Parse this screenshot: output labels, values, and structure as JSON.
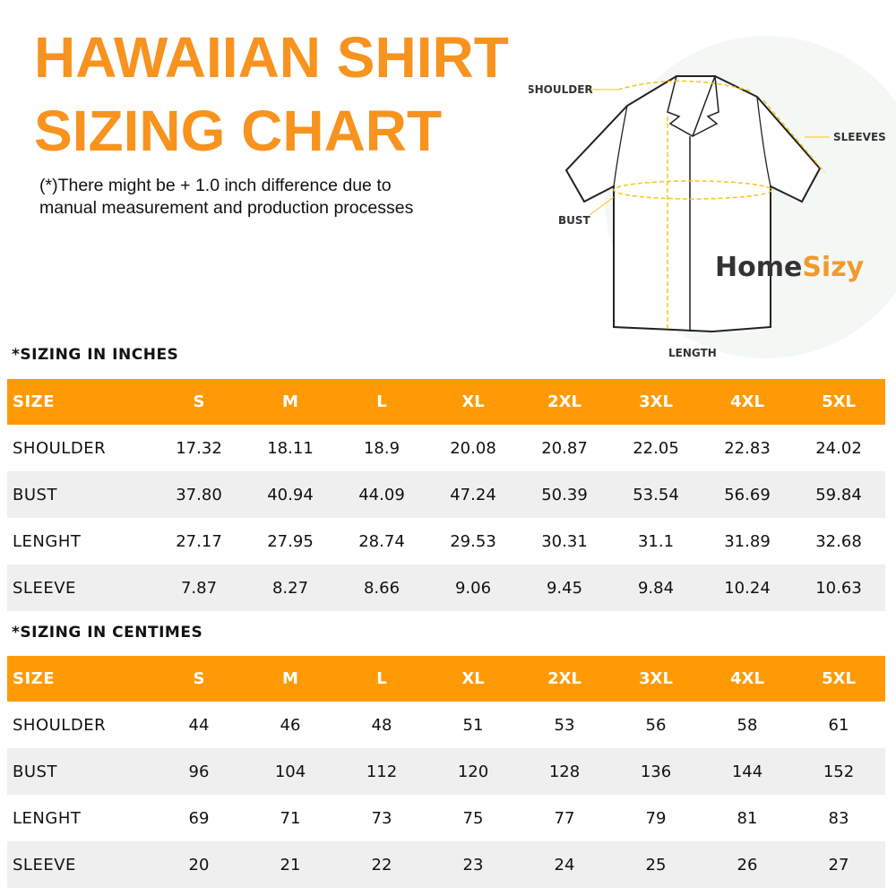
{
  "title": {
    "line1": "HAWAIIAN SHIRT",
    "line2": "SIZING CHART"
  },
  "note": {
    "line1": "(*)There might be + 1.0 inch difference due to",
    "line2": "manual measurement and production processes"
  },
  "diagram": {
    "labels": {
      "shoulder": "SHOULDER",
      "sleeves": "SLEEVES",
      "bust": "BUST",
      "length": "LENGTH"
    },
    "logo": {
      "part1": "Home",
      "part2": "Sizy"
    }
  },
  "colors": {
    "accent": "#ff9a05",
    "title": "#f7931e",
    "measure_line": "#f5c518"
  },
  "inches": {
    "label": "*SIZING IN INCHES",
    "header": [
      "SIZE",
      "S",
      "M",
      "L",
      "XL",
      "2XL",
      "3XL",
      "4XL",
      "5XL"
    ],
    "rows": [
      [
        "SHOULDER",
        "17.32",
        "18.11",
        "18.9",
        "20.08",
        "20.87",
        "22.05",
        "22.83",
        "24.02"
      ],
      [
        "BUST",
        "37.80",
        "40.94",
        "44.09",
        "47.24",
        "50.39",
        "53.54",
        "56.69",
        "59.84"
      ],
      [
        "LENGHT",
        "27.17",
        "27.95",
        "28.74",
        "29.53",
        "30.31",
        "31.1",
        "31.89",
        "32.68"
      ],
      [
        "SLEEVE",
        "7.87",
        "8.27",
        "8.66",
        "9.06",
        "9.45",
        "9.84",
        "10.24",
        "10.63"
      ]
    ]
  },
  "centimeters": {
    "label": "*SIZING IN CENTIMES",
    "header": [
      "SIZE",
      "S",
      "M",
      "L",
      "XL",
      "2XL",
      "3XL",
      "4XL",
      "5XL"
    ],
    "rows": [
      [
        "SHOULDER",
        "44",
        "46",
        "48",
        "51",
        "53",
        "56",
        "58",
        "61"
      ],
      [
        "BUST",
        "96",
        "104",
        "112",
        "120",
        "128",
        "136",
        "144",
        "152"
      ],
      [
        "LENGHT",
        "69",
        "71",
        "73",
        "75",
        "77",
        "79",
        "81",
        "83"
      ],
      [
        "SLEEVE",
        "20",
        "21",
        "22",
        "23",
        "24",
        "25",
        "26",
        "27"
      ]
    ]
  }
}
